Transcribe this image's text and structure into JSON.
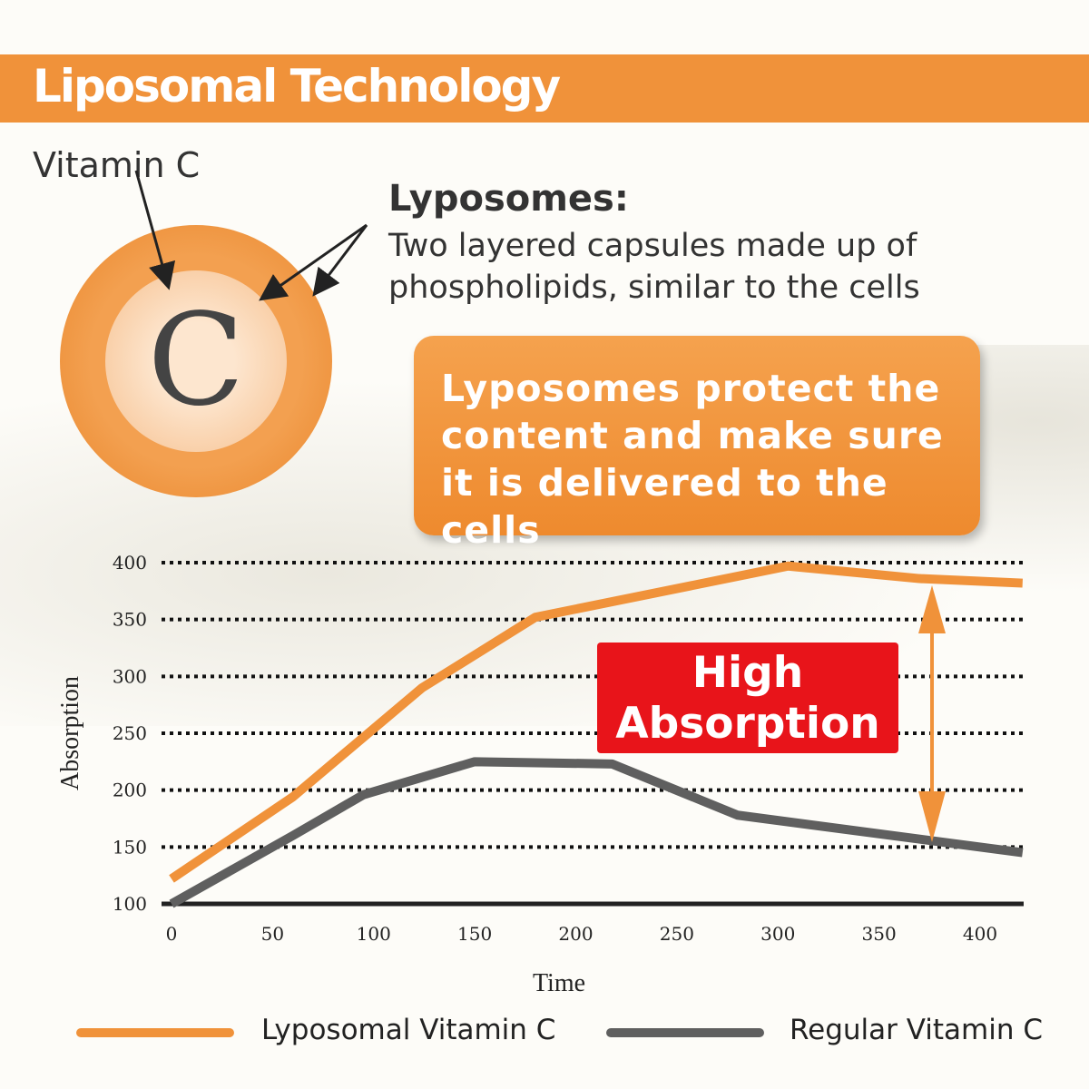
{
  "header": {
    "title": "Liposomal Technology"
  },
  "diagram": {
    "vitamin_label": "Vitamin C",
    "center_letter": "C",
    "liposomes_title": "Lyposomes:",
    "liposomes_desc": [
      "Two layered capsules made up of",
      "phospholipids, similar to the cells"
    ],
    "protect_text": [
      "Lyposomes protect the",
      "content and make sure",
      "it is delivered to the cells"
    ]
  },
  "callout": {
    "lines": [
      "High",
      "Absorption"
    ]
  },
  "colors": {
    "orange": "#f0923a",
    "gray": "#5f5f5f",
    "red": "#e8141a"
  },
  "chart_data": {
    "type": "line",
    "title": "",
    "xlabel": "Time",
    "ylabel": "Absorption",
    "xlim": [
      0,
      421
    ],
    "ylim": [
      100,
      400
    ],
    "xticks": [
      0,
      50,
      100,
      150,
      200,
      250,
      300,
      350,
      400
    ],
    "yticks": [
      100,
      150,
      200,
      250,
      300,
      350,
      400
    ],
    "grid": "horizontal dotted",
    "legend": "bottom",
    "series": [
      {
        "name": "Lyposomal Vitamin C",
        "color": "#f0923a",
        "x": [
          0,
          60,
          124,
          180,
          305,
          370,
          421
        ],
        "y": [
          122,
          194,
          290,
          352,
          397,
          386,
          382
        ]
      },
      {
        "name": "Regular Vitamin C",
        "color": "#5f5f5f",
        "x": [
          0,
          60,
          95,
          150,
          218,
          280,
          421
        ],
        "y": [
          100,
          160,
          196,
          225,
          223,
          178,
          145
        ]
      }
    ]
  }
}
